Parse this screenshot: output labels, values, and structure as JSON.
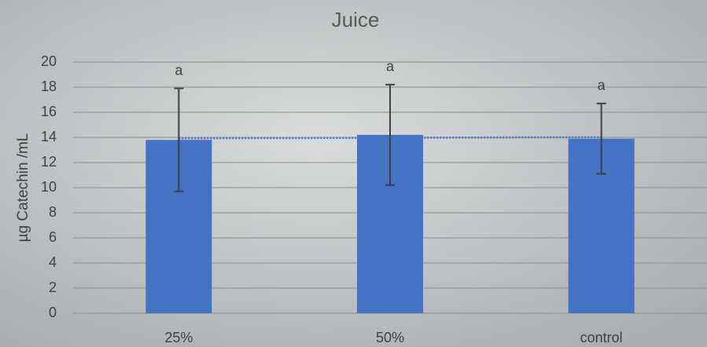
{
  "chart_data": {
    "type": "bar",
    "title": "Juice",
    "y_label": "µg Catechin /mL",
    "categories": [
      "25%",
      "50%",
      "control"
    ],
    "values": [
      13.8,
      14.2,
      13.9
    ],
    "errors": [
      4.1,
      4.0,
      2.8
    ],
    "annotations": [
      "a",
      "a",
      "a"
    ],
    "color": "#4472c4",
    "trendline": "linear",
    "trendline_color": "#4472c4",
    "ylim": [
      0,
      20
    ],
    "yticks": [
      0,
      2,
      4,
      6,
      8,
      10,
      12,
      14,
      16,
      18,
      20
    ],
    "grid": true
  }
}
